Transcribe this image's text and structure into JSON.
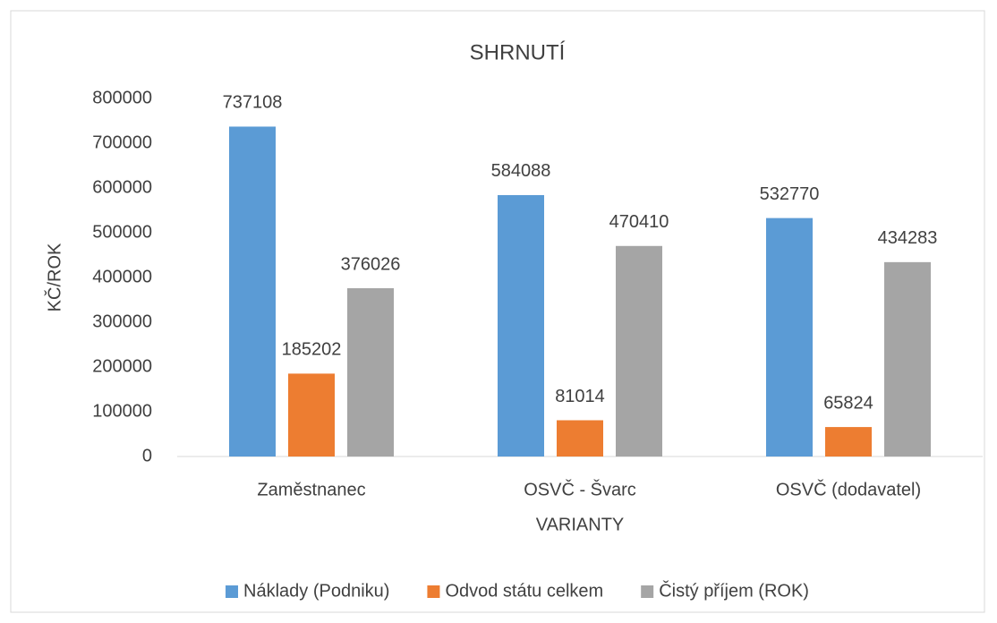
{
  "chart_data": {
    "type": "bar",
    "title": "SHRNUTÍ",
    "x_label": "VARIANTY",
    "y_label": "KČ/ROK",
    "categories": [
      "Zaměstnanec",
      "OSVČ - Švarc",
      "OSVČ (dodavatel)"
    ],
    "series": [
      {
        "name": "Náklady (Podniku)",
        "color": "#5b9bd5",
        "values": [
          737108,
          584088,
          532770
        ]
      },
      {
        "name": "Odvod státu celkem",
        "color": "#ed7d31",
        "values": [
          185202,
          81014,
          65824
        ]
      },
      {
        "name": "Čistý příjem (ROK)",
        "color": "#a5a5a5",
        "values": [
          376026,
          470410,
          434283
        ]
      }
    ],
    "ylim": [
      0,
      800000
    ],
    "yticks": [
      0,
      100000,
      200000,
      300000,
      400000,
      500000,
      600000,
      700000,
      800000
    ],
    "grid": false,
    "legend": "bottom"
  }
}
